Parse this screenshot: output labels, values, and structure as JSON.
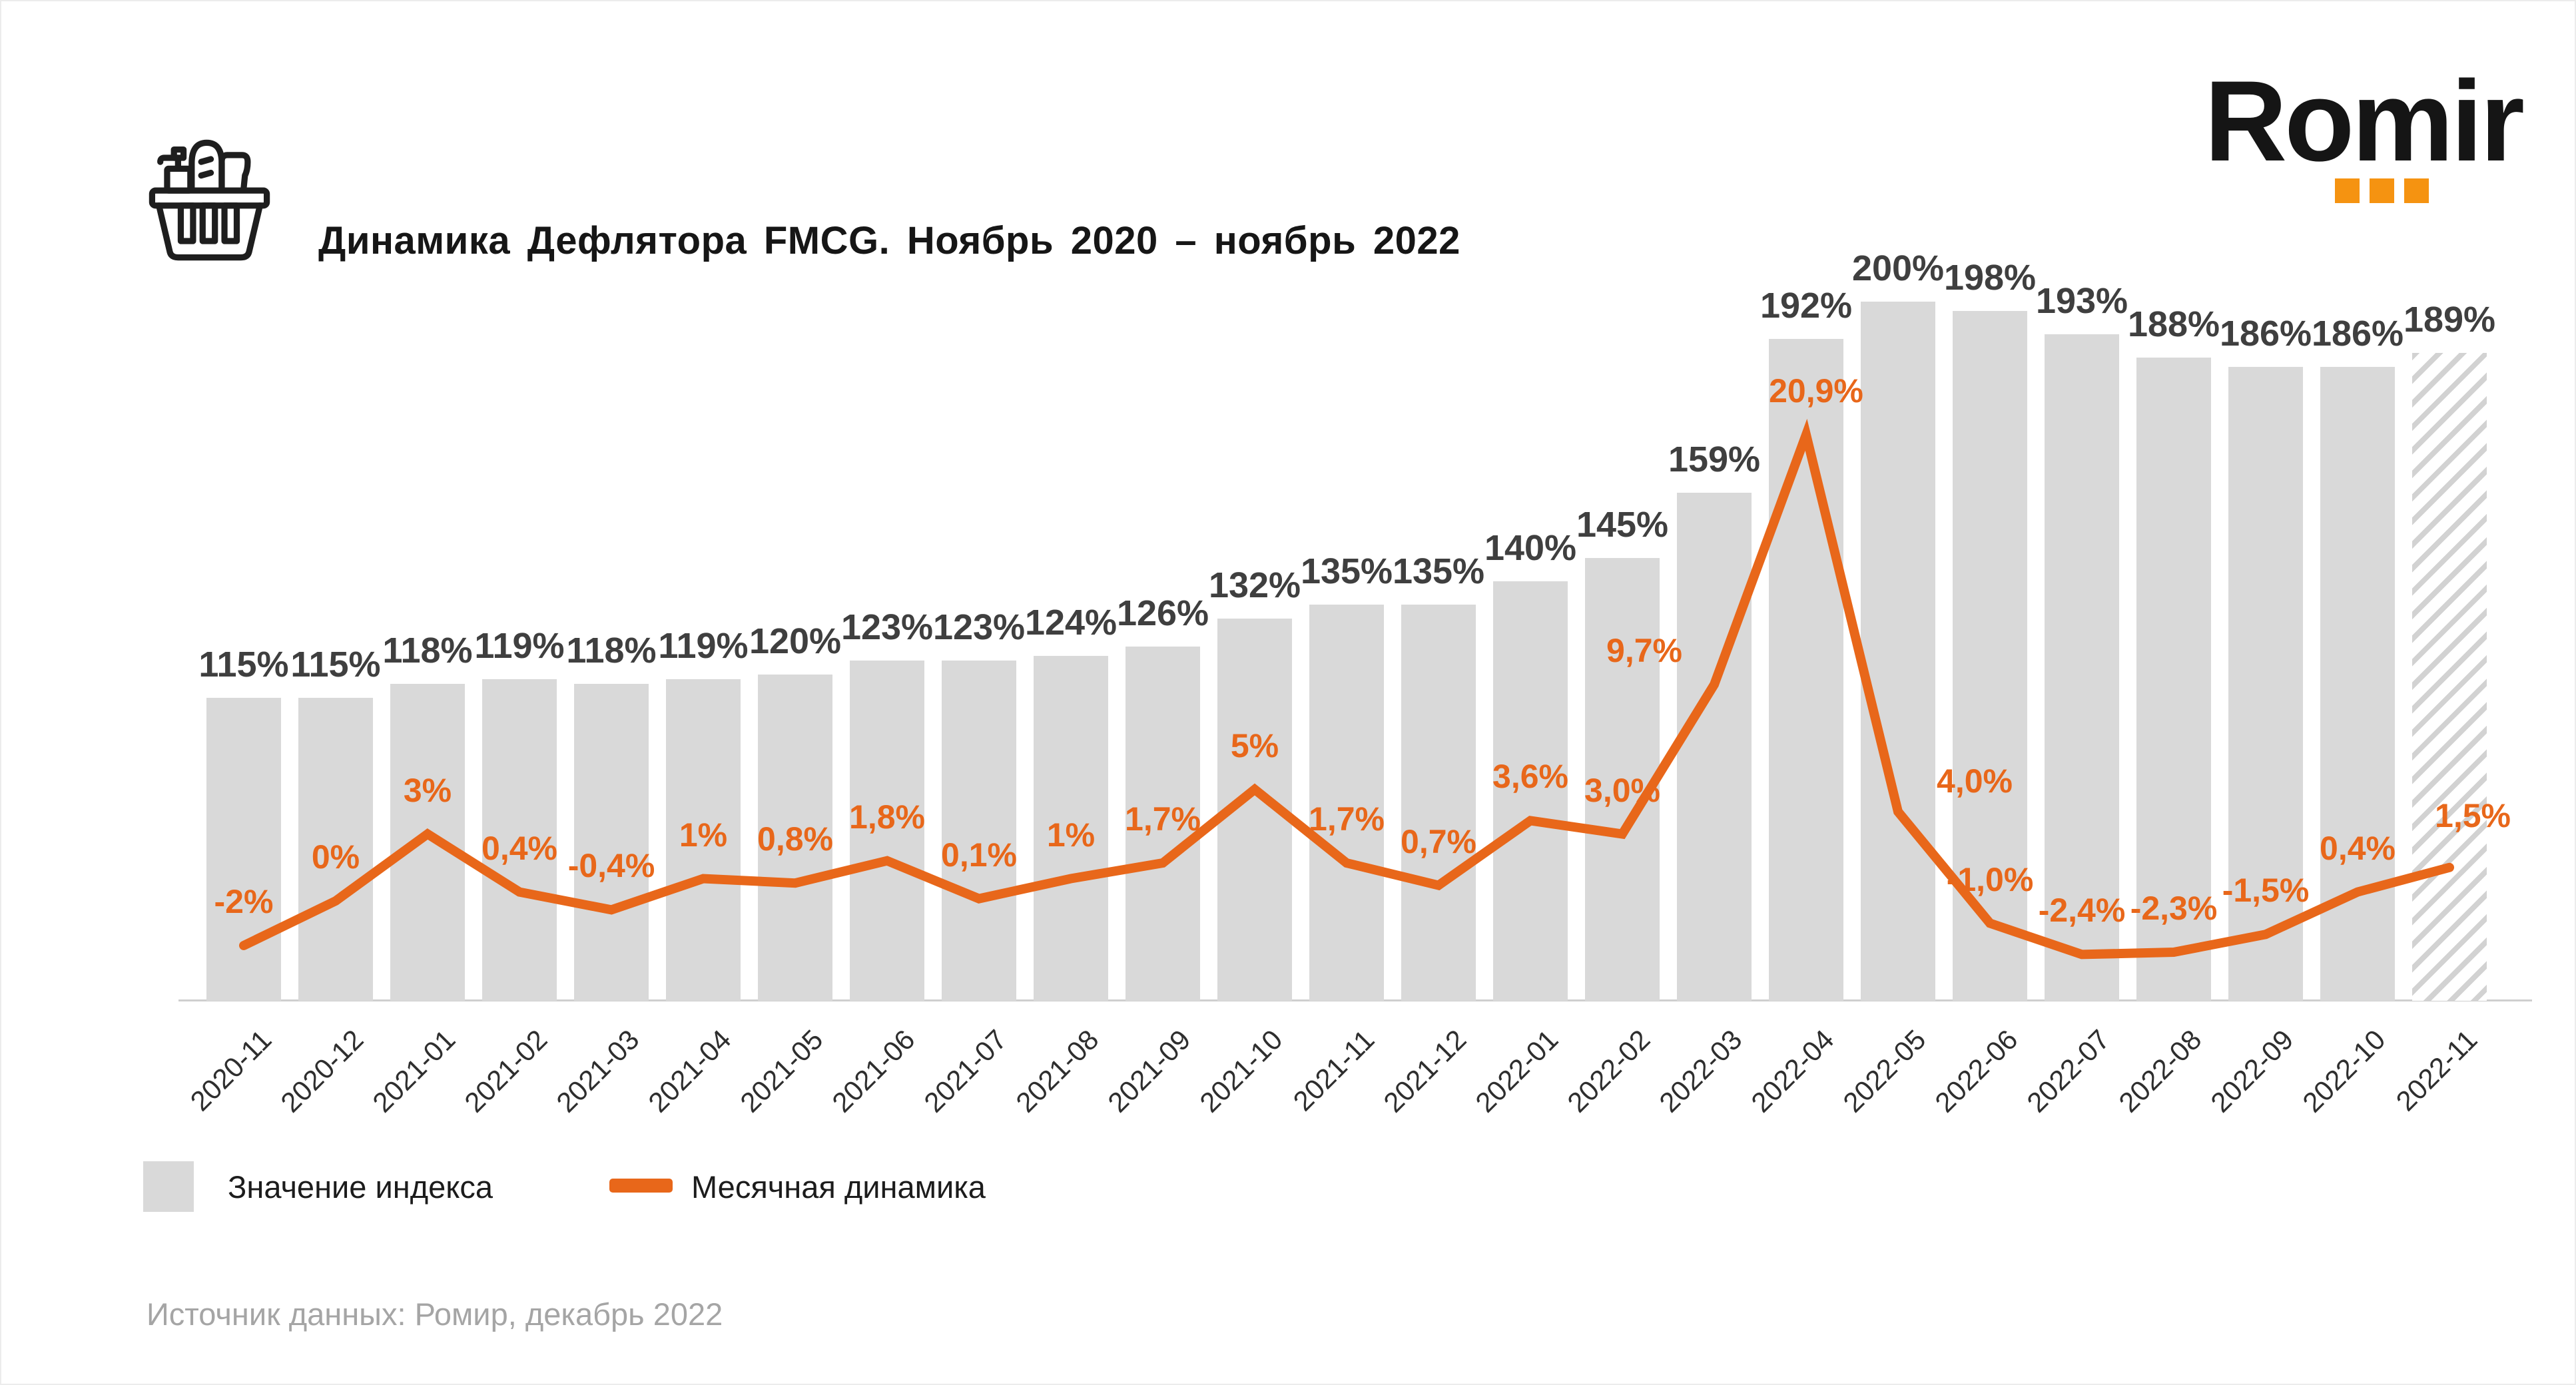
{
  "header": {
    "title": "Динамика Дефлятора FMCG. Ноябрь 2020 – ноябрь 2022",
    "logo": {
      "text": "Romir",
      "dot_color": "#F59311"
    }
  },
  "legend": {
    "index": {
      "label": "Значение индекса",
      "color": "#D9D9D9"
    },
    "dynamics": {
      "label": "Месячная динамика",
      "color": "#E8671A"
    }
  },
  "source": "Источник данных: Ромир, декабрь 2022",
  "chart_data": {
    "type": "bar",
    "title": "Динамика Дефлятора FMCG. Ноябрь 2020 – ноябрь 2022",
    "unit": "%",
    "grid": false,
    "legend_position": "bottom",
    "categories": [
      "2020-11",
      "2020-12",
      "2021-01",
      "2021-02",
      "2021-03",
      "2021-04",
      "2021-05",
      "2021-06",
      "2021-07",
      "2021-08",
      "2021-09",
      "2021-10",
      "2021-11",
      "2021-12",
      "2022-01",
      "2022-02",
      "2022-03",
      "2022-04",
      "2022-05",
      "2022-06",
      "2022-07",
      "2022-08",
      "2022-09",
      "2022-10",
      "2022-11"
    ],
    "series": [
      {
        "name": "Значение индекса",
        "type": "bar",
        "color": "#D9D9D9",
        "values": [
          115,
          115,
          118,
          119,
          118,
          119,
          120,
          123,
          123,
          124,
          126,
          132,
          135,
          135,
          140,
          145,
          159,
          192,
          200,
          198,
          193,
          188,
          186,
          186,
          189
        ],
        "labels": [
          "115%",
          "115%",
          "118%",
          "119%",
          "118%",
          "119%",
          "120%",
          "123%",
          "123%",
          "124%",
          "126%",
          "132%",
          "135%",
          "135%",
          "140%",
          "145%",
          "159%",
          "192%",
          "200%",
          "198%",
          "193%",
          "188%",
          "186%",
          "186%",
          "189%"
        ]
      },
      {
        "name": "Месячная динамика",
        "type": "line",
        "color": "#E8671A",
        "values": [
          -2,
          0,
          3,
          0.4,
          -0.4,
          1,
          0.8,
          1.8,
          0.1,
          1,
          1.7,
          5,
          1.7,
          0.7,
          3.6,
          3.0,
          9.7,
          20.9,
          4.0,
          -1.0,
          -2.4,
          -2.3,
          -1.5,
          0.4,
          1.5
        ],
        "labels": [
          "-2%",
          "0%",
          "3%",
          "0,4%",
          "-0,4%",
          "1%",
          "0,8%",
          "1,8%",
          "0,1%",
          "1%",
          "1,7%",
          "5%",
          "1,7%",
          "0,7%",
          "3,6%",
          "3,0%",
          "9,7%",
          "20,9%",
          "4,0%",
          "-1,0%",
          "-2,4%",
          "-2,3%",
          "-1,5%",
          "0,4%",
          "1,5%"
        ],
        "note_last_point": "2022-11 bar shown hatched (preliminary value)"
      }
    ]
  }
}
